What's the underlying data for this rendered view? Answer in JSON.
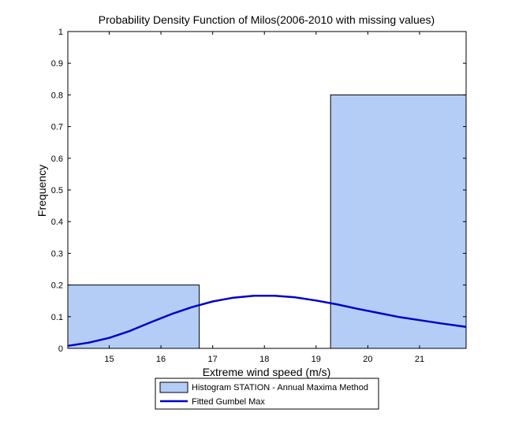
{
  "chart_data": {
    "type": "bar",
    "title": "Probability Density Function of Milos(2006-2010 with missing values)",
    "xlabel": "Extreme wind speed (m/s)",
    "ylabel": "Frequency",
    "xlim": [
      14.2,
      21.9
    ],
    "ylim": [
      0,
      1
    ],
    "xticks": [
      "15",
      "16",
      "17",
      "18",
      "19",
      "20",
      "21"
    ],
    "yticks": [
      "0",
      "0.1",
      "0.2",
      "0.3",
      "0.4",
      "0.5",
      "0.6",
      "0.7",
      "0.8",
      "0.9",
      "1"
    ],
    "grid": false,
    "legend_position": "bottom-center",
    "series": [
      {
        "name": "Histogram STATION - Annual Maxima Method",
        "kind": "histogram",
        "bins": [
          {
            "x0": 14.2,
            "x1": 16.74,
            "value": 0.2
          },
          {
            "x0": 16.74,
            "x1": 19.28,
            "value": 0.0
          },
          {
            "x0": 19.28,
            "x1": 21.9,
            "value": 0.8
          }
        ],
        "fill": "#b3cdf7",
        "edge": "#000000"
      },
      {
        "name": "Fitted Gumbel Max",
        "kind": "line",
        "x": [
          14.2,
          14.6,
          15.0,
          15.4,
          15.8,
          16.2,
          16.6,
          17.0,
          17.4,
          17.8,
          18.2,
          18.6,
          19.0,
          19.4,
          19.8,
          20.2,
          20.6,
          21.0,
          21.4,
          21.9
        ],
        "y": [
          0.008,
          0.018,
          0.033,
          0.055,
          0.082,
          0.108,
          0.13,
          0.148,
          0.16,
          0.166,
          0.166,
          0.161,
          0.151,
          0.139,
          0.125,
          0.112,
          0.099,
          0.089,
          0.079,
          0.068
        ],
        "color": "#0000cc"
      }
    ]
  }
}
